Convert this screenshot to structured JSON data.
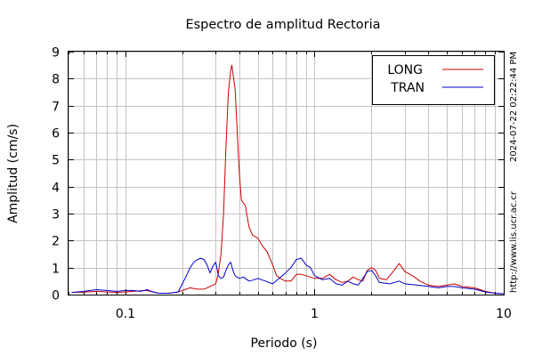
{
  "chart_data": {
    "type": "line",
    "title": "Espectro de amplitud Rectoria",
    "xlabel": "Periodo (s)",
    "ylabel": "Amplitud (cm/s)",
    "x_scale": "log",
    "xlim": [
      0.05,
      10
    ],
    "ylim": [
      0,
      9
    ],
    "x_tick_labels": [
      {
        "value": 0.1,
        "label": "0.1"
      },
      {
        "value": 1,
        "label": "1"
      },
      {
        "value": 10,
        "label": "10"
      }
    ],
    "y_ticks": [
      0,
      1,
      2,
      3,
      4,
      5,
      6,
      7,
      8,
      9
    ],
    "grid": true,
    "legend_position": "top-right",
    "side_annotations": [
      "2024-07-22 02:22:44 PM",
      "http://www.lis.ucr.ac.cr"
    ],
    "series": [
      {
        "name": "LONG",
        "color": "#cc0000",
        "points": [
          [
            0.052,
            0.08
          ],
          [
            0.06,
            0.09
          ],
          [
            0.07,
            0.12
          ],
          [
            0.08,
            0.1
          ],
          [
            0.09,
            0.08
          ],
          [
            0.1,
            0.1
          ],
          [
            0.11,
            0.12
          ],
          [
            0.12,
            0.14
          ],
          [
            0.13,
            0.15
          ],
          [
            0.14,
            0.1
          ],
          [
            0.15,
            0.05
          ],
          [
            0.17,
            0.05
          ],
          [
            0.19,
            0.1
          ],
          [
            0.2,
            0.15
          ],
          [
            0.22,
            0.25
          ],
          [
            0.24,
            0.2
          ],
          [
            0.26,
            0.2
          ],
          [
            0.28,
            0.3
          ],
          [
            0.3,
            0.4
          ],
          [
            0.31,
            0.8
          ],
          [
            0.32,
            1.5
          ],
          [
            0.33,
            3.0
          ],
          [
            0.34,
            5.5
          ],
          [
            0.35,
            7.5
          ],
          [
            0.36,
            8.3
          ],
          [
            0.365,
            8.5
          ],
          [
            0.37,
            8.2
          ],
          [
            0.38,
            7.6
          ],
          [
            0.39,
            6.0
          ],
          [
            0.4,
            4.5
          ],
          [
            0.41,
            3.5
          ],
          [
            0.43,
            3.3
          ],
          [
            0.45,
            2.5
          ],
          [
            0.47,
            2.2
          ],
          [
            0.5,
            2.1
          ],
          [
            0.53,
            1.8
          ],
          [
            0.56,
            1.6
          ],
          [
            0.6,
            1.1
          ],
          [
            0.63,
            0.7
          ],
          [
            0.66,
            0.6
          ],
          [
            0.7,
            0.5
          ],
          [
            0.75,
            0.5
          ],
          [
            0.8,
            0.75
          ],
          [
            0.85,
            0.75
          ],
          [
            0.9,
            0.7
          ],
          [
            1.0,
            0.6
          ],
          [
            1.1,
            0.6
          ],
          [
            1.2,
            0.75
          ],
          [
            1.3,
            0.55
          ],
          [
            1.4,
            0.45
          ],
          [
            1.5,
            0.5
          ],
          [
            1.6,
            0.65
          ],
          [
            1.7,
            0.55
          ],
          [
            1.8,
            0.5
          ],
          [
            1.9,
            0.9
          ],
          [
            2.0,
            1.0
          ],
          [
            2.1,
            0.9
          ],
          [
            2.2,
            0.6
          ],
          [
            2.4,
            0.55
          ],
          [
            2.6,
            0.85
          ],
          [
            2.8,
            1.15
          ],
          [
            3.0,
            0.85
          ],
          [
            3.3,
            0.7
          ],
          [
            3.6,
            0.5
          ],
          [
            4.0,
            0.35
          ],
          [
            4.5,
            0.3
          ],
          [
            5.0,
            0.35
          ],
          [
            5.5,
            0.4
          ],
          [
            6.0,
            0.3
          ],
          [
            7.0,
            0.25
          ],
          [
            8.0,
            0.12
          ],
          [
            9.0,
            0.05
          ],
          [
            10.0,
            0.03
          ]
        ]
      },
      {
        "name": "TRAN",
        "color": "#0000cc",
        "points": [
          [
            0.052,
            0.08
          ],
          [
            0.06,
            0.12
          ],
          [
            0.07,
            0.18
          ],
          [
            0.08,
            0.15
          ],
          [
            0.09,
            0.12
          ],
          [
            0.1,
            0.15
          ],
          [
            0.11,
            0.15
          ],
          [
            0.12,
            0.12
          ],
          [
            0.13,
            0.18
          ],
          [
            0.14,
            0.1
          ],
          [
            0.15,
            0.05
          ],
          [
            0.17,
            0.05
          ],
          [
            0.19,
            0.1
          ],
          [
            0.2,
            0.4
          ],
          [
            0.21,
            0.7
          ],
          [
            0.22,
            1.0
          ],
          [
            0.23,
            1.2
          ],
          [
            0.24,
            1.3
          ],
          [
            0.25,
            1.35
          ],
          [
            0.26,
            1.3
          ],
          [
            0.27,
            1.1
          ],
          [
            0.28,
            0.8
          ],
          [
            0.29,
            1.05
          ],
          [
            0.3,
            1.2
          ],
          [
            0.31,
            0.7
          ],
          [
            0.32,
            0.6
          ],
          [
            0.33,
            0.65
          ],
          [
            0.34,
            0.9
          ],
          [
            0.35,
            1.1
          ],
          [
            0.36,
            1.2
          ],
          [
            0.37,
            0.9
          ],
          [
            0.38,
            0.7
          ],
          [
            0.4,
            0.6
          ],
          [
            0.42,
            0.65
          ],
          [
            0.45,
            0.5
          ],
          [
            0.48,
            0.55
          ],
          [
            0.5,
            0.6
          ],
          [
            0.55,
            0.5
          ],
          [
            0.6,
            0.4
          ],
          [
            0.65,
            0.6
          ],
          [
            0.7,
            0.8
          ],
          [
            0.75,
            1.0
          ],
          [
            0.8,
            1.3
          ],
          [
            0.85,
            1.35
          ],
          [
            0.9,
            1.1
          ],
          [
            0.95,
            1.0
          ],
          [
            1.0,
            0.7
          ],
          [
            1.1,
            0.55
          ],
          [
            1.2,
            0.6
          ],
          [
            1.3,
            0.4
          ],
          [
            1.4,
            0.35
          ],
          [
            1.5,
            0.5
          ],
          [
            1.6,
            0.4
          ],
          [
            1.7,
            0.35
          ],
          [
            1.8,
            0.6
          ],
          [
            1.9,
            0.85
          ],
          [
            2.0,
            0.9
          ],
          [
            2.1,
            0.7
          ],
          [
            2.2,
            0.45
          ],
          [
            2.5,
            0.4
          ],
          [
            2.8,
            0.5
          ],
          [
            3.0,
            0.4
          ],
          [
            3.5,
            0.35
          ],
          [
            4.0,
            0.3
          ],
          [
            4.5,
            0.25
          ],
          [
            5.0,
            0.3
          ],
          [
            5.5,
            0.3
          ],
          [
            6.0,
            0.25
          ],
          [
            7.0,
            0.2
          ],
          [
            8.0,
            0.1
          ],
          [
            9.0,
            0.05
          ],
          [
            10.0,
            0.03
          ]
        ]
      }
    ]
  }
}
